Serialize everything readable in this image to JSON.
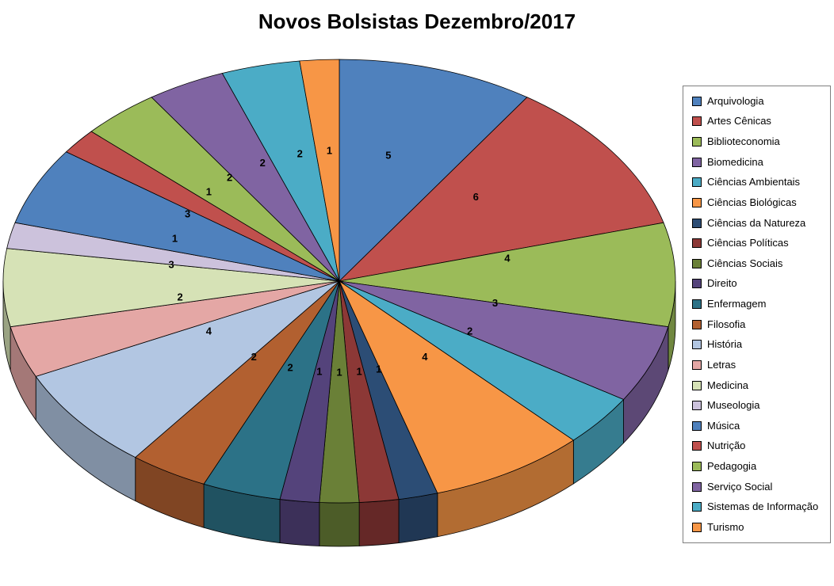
{
  "page": {
    "background": "#FFFFFF"
  },
  "chart_data": {
    "type": "pie",
    "effect": "3d",
    "title": "Novos Bolsistas Dezembro/2017",
    "legend_position": "right",
    "total": 53,
    "grid": false,
    "slices": [
      {
        "label": "Arquivologia",
        "value": 5,
        "color": "#4F81BD"
      },
      {
        "label": "Artes Cênicas",
        "value": 6,
        "color": "#C0504D"
      },
      {
        "label": "Biblioteconomia",
        "value": 4,
        "color": "#9BBB59"
      },
      {
        "label": "Biomedicina",
        "value": 3,
        "color": "#8064A2"
      },
      {
        "label": "Ciências Ambientais",
        "value": 2,
        "color": "#4BACC6"
      },
      {
        "label": "Ciências Biológicas",
        "value": 4,
        "color": "#F79646"
      },
      {
        "label": "Ciências da Natureza",
        "value": 1,
        "color": "#2C4D75"
      },
      {
        "label": "Ciências Políticas",
        "value": 1,
        "color": "#8C3836"
      },
      {
        "label": "Ciências Sociais",
        "value": 1,
        "color": "#6A8037"
      },
      {
        "label": "Direito",
        "value": 1,
        "color": "#54437B"
      },
      {
        "label": "Enfermagem",
        "value": 2,
        "color": "#2C7287"
      },
      {
        "label": "Filosofia",
        "value": 2,
        "color": "#B26030"
      },
      {
        "label": "História",
        "value": 4,
        "color": "#B2C6E2"
      },
      {
        "label": "Letras",
        "value": 2,
        "color": "#E4A7A5"
      },
      {
        "label": "Medicina",
        "value": 3,
        "color": "#D6E2B6"
      },
      {
        "label": "Museologia",
        "value": 1,
        "color": "#CCC2DC"
      },
      {
        "label": "Música",
        "value": 3,
        "color": "#4F81BD"
      },
      {
        "label": "Nutrição",
        "value": 1,
        "color": "#C0504D"
      },
      {
        "label": "Pedagogia",
        "value": 2,
        "color": "#9BBB59"
      },
      {
        "label": "Serviço Social",
        "value": 2,
        "color": "#8064A2"
      },
      {
        "label": "Sistemas de Informação",
        "value": 2,
        "color": "#4BACC6"
      },
      {
        "label": "Turismo",
        "value": 1,
        "color": "#F79646"
      }
    ]
  }
}
